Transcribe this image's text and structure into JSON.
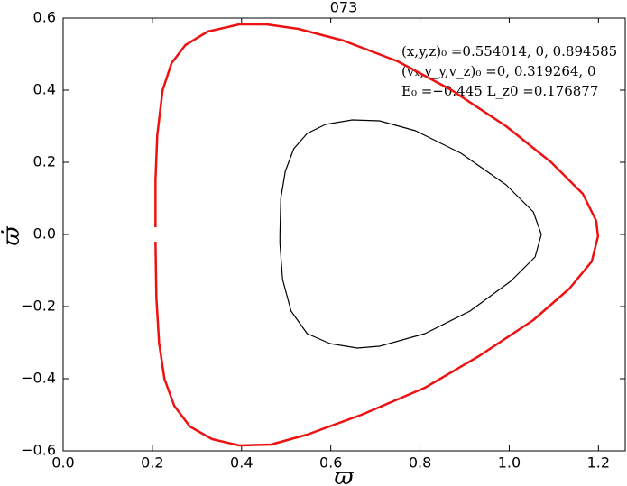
{
  "chart_data": {
    "type": "line",
    "title": "073",
    "x_label": "ϖ",
    "y_label": "ϖ̇",
    "annotations": [
      "(x,y,z)₀ =0.554014, 0, 0.894585",
      "(vₓ,v_y,v_z)₀ =0, 0.319264, 0",
      "E₀ =−0.445  L_z0 =0.176877"
    ],
    "xlim": [
      0,
      1.26
    ],
    "ylim": [
      -0.6,
      0.6
    ],
    "xticks": [
      {
        "value": 0,
        "label": "0.0"
      },
      0.2,
      0.4,
      0.6,
      0.8,
      {
        "value": 1,
        "label": "1.0"
      },
      1.2
    ],
    "yticks": [
      {
        "value": -0.6,
        "label": "−0.6"
      },
      {
        "value": -0.4,
        "label": "−0.4"
      },
      {
        "value": -0.2,
        "label": "−0.2"
      },
      {
        "value": 0,
        "label": "0.0"
      },
      0.2,
      0.4,
      0.6
    ],
    "series": [
      {
        "color": "#ee1111",
        "closed": false,
        "x": [
          0.207,
          0.207,
          0.211,
          0.223,
          0.243,
          0.274,
          0.324,
          0.395,
          0.456,
          0.527,
          0.628,
          0.75,
          0.871,
          0.993,
          1.094,
          1.165,
          1.195,
          1.199,
          1.185,
          1.135,
          1.054,
          0.932,
          0.811,
          0.669,
          0.547,
          0.466,
          0.395,
          0.334,
          0.284,
          0.249,
          0.227,
          0.215,
          0.209,
          0.207
        ],
        "values": [
          0.02,
          0.15,
          0.275,
          0.4,
          0.475,
          0.525,
          0.5625,
          0.5825,
          0.5825,
          0.57,
          0.5375,
          0.48,
          0.4,
          0.3,
          0.2,
          0.1125,
          0.0375,
          -0.005,
          -0.075,
          -0.15,
          -0.2375,
          -0.3375,
          -0.425,
          -0.5,
          -0.555,
          -0.5825,
          -0.585,
          -0.5675,
          -0.5325,
          -0.475,
          -0.4,
          -0.3,
          -0.175,
          -0.02
        ]
      },
      {
        "color": "#000000",
        "closed": true,
        "x": [
          0.486,
          0.488,
          0.498,
          0.517,
          0.547,
          0.588,
          0.648,
          0.709,
          0.79,
          0.892,
          0.993,
          1.054,
          1.072,
          1.058,
          1.003,
          0.912,
          0.811,
          0.709,
          0.659,
          0.598,
          0.547,
          0.511,
          0.492,
          0.486
        ],
        "values": [
          0,
          0.1,
          0.175,
          0.2375,
          0.28,
          0.305,
          0.3175,
          0.315,
          0.2875,
          0.225,
          0.1375,
          0.0625,
          0,
          -0.0625,
          -0.13,
          -0.2125,
          -0.275,
          -0.31,
          -0.315,
          -0.3025,
          -0.275,
          -0.2125,
          -0.125,
          -0.025
        ]
      }
    ]
  }
}
